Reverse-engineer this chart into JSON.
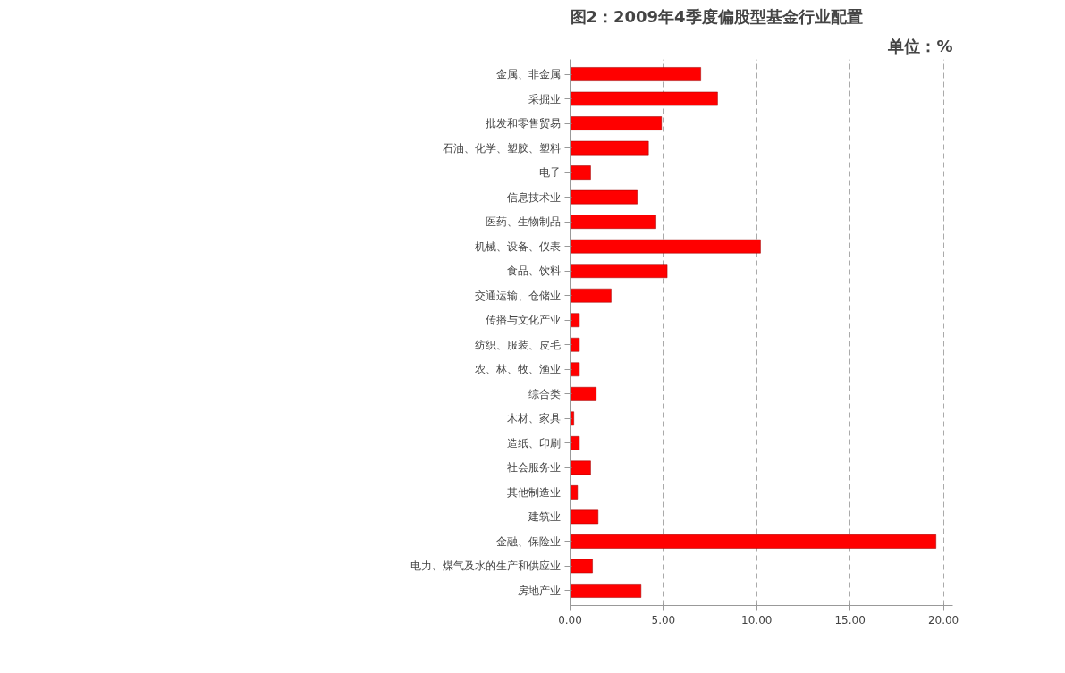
{
  "chart_data": {
    "type": "bar",
    "orientation": "horizontal",
    "title": "图2：2009年4季度偏股型基金行业配置",
    "annotations": [
      "单位：%"
    ],
    "categories": [
      "金属、非金属",
      "采掘业",
      "批发和零售贸易",
      "石油、化学、塑胶、塑料",
      "电子",
      "信息技术业",
      "医药、生物制品",
      "机械、设备、仪表",
      "食品、饮料",
      "交通运输、仓储业",
      "传播与文化产业",
      "纺织、服装、皮毛",
      "农、林、牧、渔业",
      "综合类",
      "木材、家具",
      "造纸、印刷",
      "社会服务业",
      "其他制造业",
      "建筑业",
      "金融、保险业",
      "电力、煤气及水的生产和供应业",
      "房地产业"
    ],
    "values": [
      7.0,
      7.9,
      4.9,
      4.2,
      1.1,
      3.6,
      4.6,
      10.2,
      5.2,
      2.2,
      0.5,
      0.5,
      0.5,
      1.4,
      0.2,
      0.5,
      1.1,
      0.4,
      1.5,
      19.6,
      1.2,
      3.8
    ],
    "color": "#ff0000",
    "xlim": [
      0,
      20.5
    ],
    "xticks": [
      {
        "value": 0,
        "label": "0.00"
      },
      {
        "value": 5,
        "label": "5.00"
      },
      {
        "value": 10,
        "label": "10.00"
      },
      {
        "value": 15,
        "label": "15.00"
      },
      {
        "value": 20,
        "label": "20.00"
      }
    ],
    "grid": "x"
  }
}
